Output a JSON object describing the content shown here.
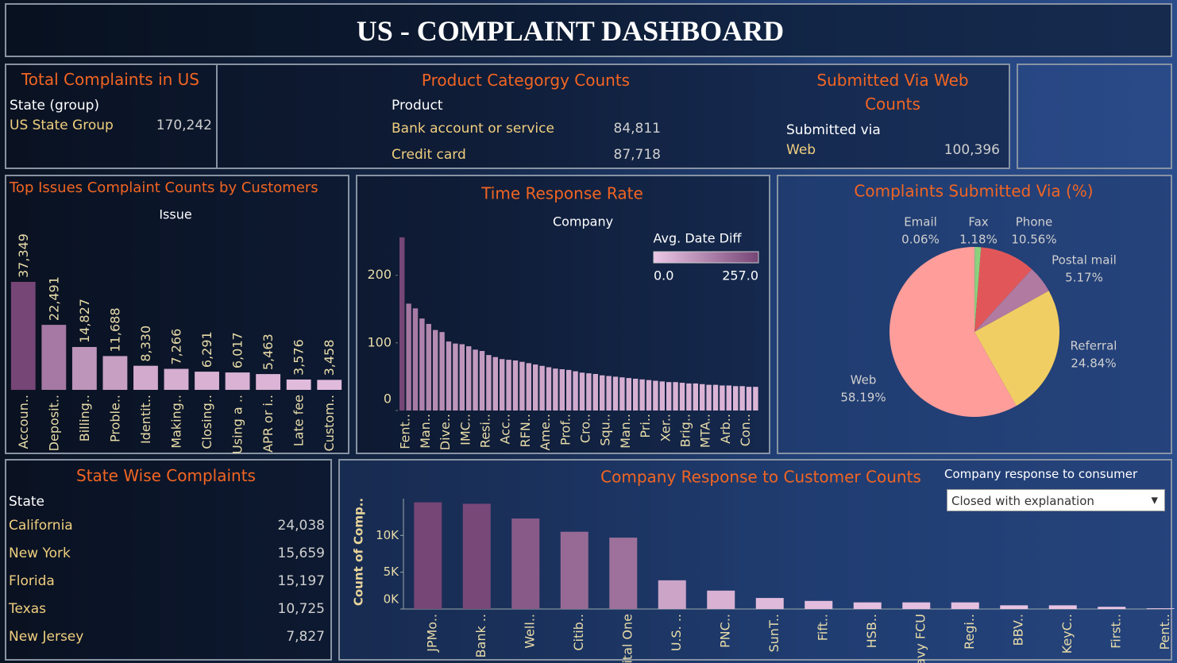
{
  "title": "US - COMPLAINT DASHBOARD",
  "total_complaints": {
    "title": "Total Complaints in US",
    "header": "State (group)",
    "rows": [
      [
        "US State Group",
        "170,242"
      ]
    ]
  },
  "product_counts": {
    "title": "Product Categorgy Counts",
    "header": "Product",
    "rows": [
      [
        "Bank account or service",
        "84,811"
      ],
      [
        "Credit card",
        "87,718"
      ]
    ]
  },
  "submitted_web": {
    "title": "Submitted Via Web Counts",
    "header": "Submitted via",
    "rows": [
      [
        "Web",
        "100,396"
      ]
    ]
  },
  "state_complaints": {
    "title": "State Wise Complaints",
    "header": "State",
    "rows": [
      [
        "California",
        "24,038"
      ],
      [
        "New York",
        "15,659"
      ],
      [
        "Florida",
        "15,197"
      ],
      [
        "Texas",
        "10,725"
      ],
      [
        "New Jersey",
        "7,827"
      ]
    ]
  },
  "filter": {
    "label": "Company response to consumer",
    "value": "Closed with explanation"
  },
  "chart_data": [
    {
      "type": "bar",
      "title": "Top Issues Complaint Counts by Customers",
      "x_label": "Issue",
      "categories": [
        "Accoun..",
        "Deposit..",
        "Billing..",
        "Proble..",
        "Identit..",
        "Making..",
        "Closing..",
        "Using a ..",
        "APR or i..",
        "Late fee",
        "Custom.."
      ],
      "values": [
        37349,
        22491,
        14827,
        11688,
        8330,
        7266,
        6291,
        6017,
        5463,
        3576,
        3458
      ],
      "value_labels": [
        "37,349",
        "22,491",
        "14,827",
        "11,688",
        "8,330",
        "7,266",
        "6,291",
        "6,017",
        "5,463",
        "3,576",
        "3,458"
      ]
    },
    {
      "type": "bar",
      "title": "Time Response Rate",
      "x_label": "Company",
      "categories": [
        "Fent..",
        null,
        null,
        "Man..",
        null,
        null,
        "Dive..",
        null,
        null,
        "IMC..",
        null,
        null,
        "Resi..",
        null,
        null,
        "Acc..",
        null,
        null,
        "RFN..",
        null,
        null,
        "Ame..",
        null,
        null,
        "Prof..",
        null,
        null,
        "Cro..",
        null,
        null,
        "Squ..",
        null,
        null,
        "Man..",
        null,
        null,
        "Pri..",
        null,
        null,
        "Xer..",
        null,
        null,
        "Brig..",
        null,
        null,
        "MTA..",
        null,
        null,
        "Arb..",
        null,
        null,
        "Con..",
        null,
        null
      ],
      "values": [
        256,
        158,
        151,
        136,
        128,
        119,
        116,
        102,
        99,
        98,
        95,
        90,
        88,
        82,
        79,
        76,
        75,
        74,
        72,
        70,
        68,
        66,
        64,
        62,
        61,
        60,
        58,
        56,
        55,
        54,
        52,
        51,
        50,
        49,
        48,
        47,
        46,
        45,
        44,
        43,
        42,
        42,
        41,
        40,
        40,
        39,
        38,
        38,
        37,
        37,
        36,
        36,
        35,
        35
      ],
      "ylim": [
        0,
        270
      ],
      "yticks": [
        0,
        100,
        200
      ],
      "legend": {
        "title": "Avg. Date Diff",
        "range": [
          {
            "value": 0,
            "label": "0.0"
          },
          {
            "value": 257,
            "label": "257.0"
          }
        ]
      }
    },
    {
      "type": "pie",
      "title": "Complaints Submitted Via (%)",
      "categories": [
        "Email",
        "Fax",
        "Phone",
        "Postal mail",
        "Referral",
        "Web"
      ],
      "values": [
        0.06,
        1.18,
        10.56,
        5.17,
        24.84,
        58.19
      ],
      "value_labels": [
        "0.06%",
        "1.18%",
        "10.56%",
        "5.17%",
        "24.84%",
        "58.19%"
      ],
      "colors": [
        "#9aa7b8",
        "#8cd17d",
        "#e15759",
        "#b07aa1",
        "#f1ce63",
        "#ff9d9a"
      ]
    },
    {
      "type": "bar",
      "title": "Company Response to Customer Counts",
      "y_label": "Count of Comp..",
      "categories": [
        "JPMo..",
        "Bank ..",
        "Well..",
        "Citib..",
        "Capital One",
        "U.S. ..",
        "PNC..",
        "SunT..",
        "Fift..",
        "HSB..",
        "Navy FCU",
        "Regi..",
        "BBV..",
        "KeyC..",
        "First..",
        "Pent.."
      ],
      "values": [
        14500,
        14300,
        12300,
        10500,
        9700,
        3900,
        2500,
        1500,
        1100,
        900,
        900,
        900,
        500,
        500,
        300,
        100
      ],
      "ylim": [
        0,
        15000
      ],
      "yticks": [
        {
          "value": 0,
          "label": "0K"
        },
        {
          "value": 5000,
          "label": "5K"
        },
        {
          "value": 10000,
          "label": "10K"
        }
      ]
    }
  ]
}
